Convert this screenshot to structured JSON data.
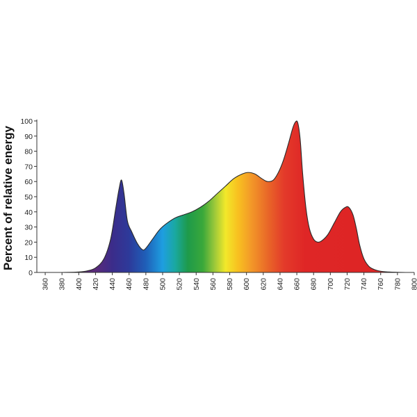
{
  "chart_data": {
    "type": "area",
    "title": "",
    "xlabel": "",
    "ylabel": "Percent of relative energy",
    "xlim": [
      350,
      800
    ],
    "ylim": [
      0,
      100
    ],
    "grid": false,
    "x_tick_labels": [
      "360",
      "380",
      "400",
      "420",
      "440",
      "460",
      "480",
      "500",
      "520",
      "540",
      "560",
      "580",
      "600",
      "620",
      "640",
      "660",
      "680",
      "700",
      "720",
      "740",
      "760",
      "780",
      "800"
    ],
    "y_tick_labels": [
      "0",
      "10",
      "20",
      "30",
      "40",
      "50",
      "60",
      "70",
      "80",
      "90",
      "100"
    ],
    "series": [
      {
        "x": [
          350,
          380,
          400,
          410,
          420,
          430,
          438,
          444,
          448,
          451,
          454,
          458,
          463,
          470,
          476,
          480,
          488,
          496,
          504,
          515,
          525,
          535,
          545,
          555,
          565,
          575,
          585,
          595,
          602,
          610,
          618,
          625,
          632,
          638,
          644,
          650,
          655,
          658,
          661,
          664,
          667,
          671,
          675,
          680,
          685,
          690,
          697,
          705,
          712,
          718,
          722,
          727,
          731,
          735,
          740,
          746,
          752,
          760,
          770,
          780,
          790,
          800
        ],
        "y": [
          0,
          0,
          0.3,
          1,
          3,
          9,
          22,
          42,
          55,
          61,
          52,
          34,
          27,
          19,
          15,
          16,
          22,
          28,
          32,
          36,
          38,
          40,
          43,
          47,
          52,
          57,
          62,
          65,
          66,
          65,
          62,
          60,
          61,
          66,
          74,
          85,
          95,
          99,
          99,
          88,
          65,
          42,
          29,
          22,
          20,
          21,
          25,
          33,
          40,
          43,
          43,
          38,
          29,
          18,
          9,
          4,
          2,
          0.8,
          0.3,
          0.1,
          0,
          0
        ]
      }
    ],
    "gradient_stops": [
      {
        "x": 420,
        "color": "#5a2a7a"
      },
      {
        "x": 440,
        "color": "#3b2c8a"
      },
      {
        "x": 460,
        "color": "#2d3a9a"
      },
      {
        "x": 480,
        "color": "#1f5fb8"
      },
      {
        "x": 500,
        "color": "#1e9ee0"
      },
      {
        "x": 515,
        "color": "#1aa8a0"
      },
      {
        "x": 530,
        "color": "#1e9a4a"
      },
      {
        "x": 548,
        "color": "#3aa83a"
      },
      {
        "x": 562,
        "color": "#9cc83a"
      },
      {
        "x": 575,
        "color": "#f2e82a"
      },
      {
        "x": 590,
        "color": "#f8c020"
      },
      {
        "x": 605,
        "color": "#f39a28"
      },
      {
        "x": 625,
        "color": "#e96828"
      },
      {
        "x": 645,
        "color": "#e33a2a"
      },
      {
        "x": 670,
        "color": "#df2626"
      },
      {
        "x": 800,
        "color": "#dc2424"
      }
    ]
  }
}
